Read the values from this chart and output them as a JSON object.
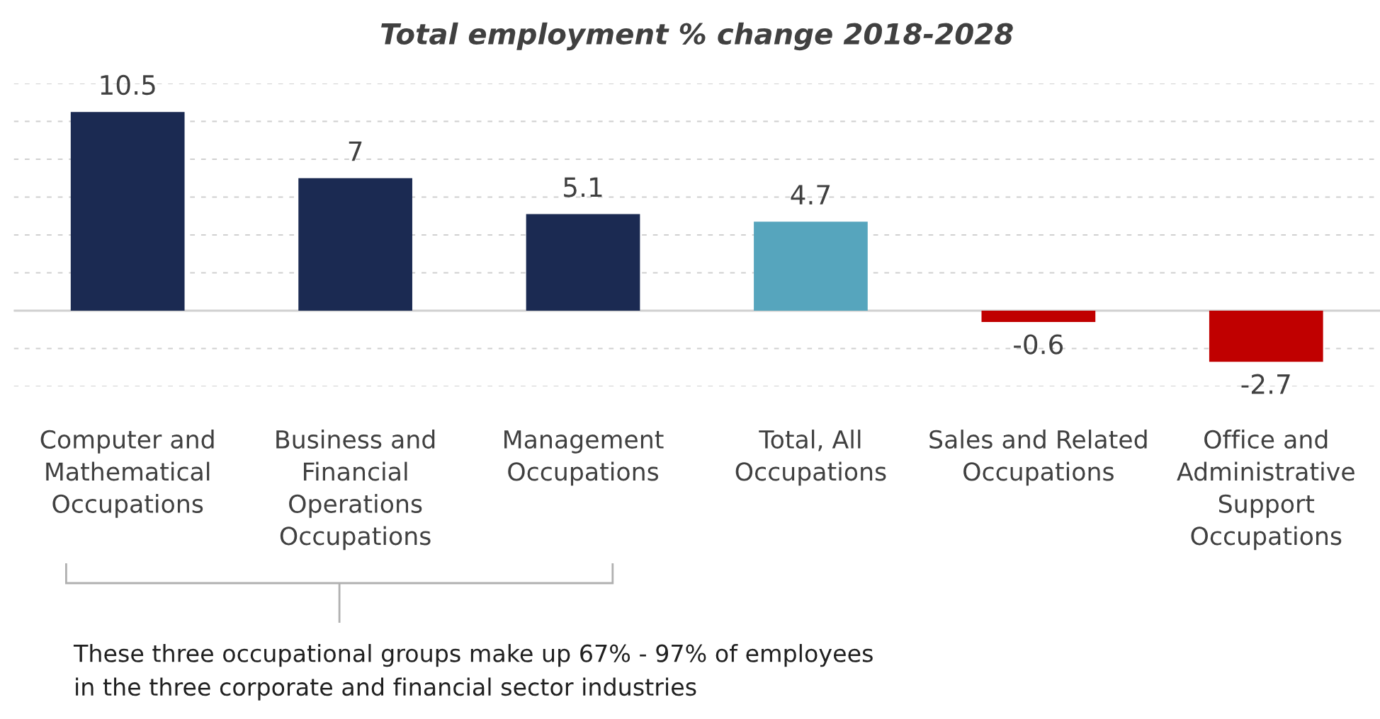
{
  "chart_data": {
    "type": "bar",
    "title": "Total employment % change 2018-2028",
    "categories": [
      "Computer and\nMathematical\nOccupations",
      "Business and\nFinancial\nOperations\nOccupations",
      "Management\nOccupations",
      "Total, All\nOccupations",
      "Sales and Related\nOccupations",
      "Office and\nAdministrative\nSupport\nOccupations"
    ],
    "values": [
      10.5,
      7,
      5.1,
      4.7,
      -0.6,
      -2.7
    ],
    "colors": [
      "#1b2a52",
      "#1b2a52",
      "#1b2a52",
      "#56a5bd",
      "#c00000",
      "#c00000"
    ],
    "data_labels": true,
    "ylim": [
      -4,
      12
    ],
    "yticks": [
      {
        "value": -4,
        "label": null
      },
      {
        "value": -2,
        "label": null
      },
      {
        "value": 0,
        "label": null
      },
      {
        "value": 2,
        "label": null
      },
      {
        "value": 4,
        "label": null
      },
      {
        "value": 6,
        "label": null
      },
      {
        "value": 8,
        "label": null
      },
      {
        "value": 10,
        "label": null
      },
      {
        "value": 12,
        "label": null
      }
    ],
    "grid": "y",
    "tick_labels": "x",
    "annotations": [
      "These three occupational groups make up 67% - 97% of employees\nin the three corporate and financial sector industries"
    ]
  }
}
